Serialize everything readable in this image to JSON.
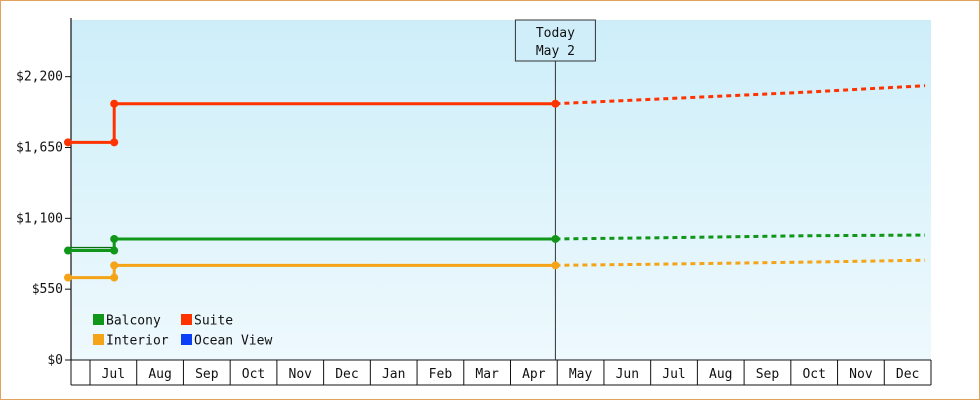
{
  "chart_data": {
    "type": "line",
    "y_ticks": [
      "$0",
      "$550",
      "$1,100",
      "$1,650",
      "$2,200"
    ],
    "ylim": [
      0,
      2640
    ],
    "x_months": [
      "Jul",
      "Aug",
      "Sep",
      "Oct",
      "Nov",
      "Dec",
      "Jan",
      "Feb",
      "Mar",
      "Apr",
      "May",
      "Jun",
      "Jul",
      "Aug",
      "Sep",
      "Oct",
      "Nov",
      "Dec"
    ],
    "today": {
      "line1": "Today",
      "line2": "May 2",
      "x": 10.55
    },
    "grid": false,
    "legend_position": "bottom-left",
    "series": [
      {
        "name": "Suite",
        "color": "#ff3300",
        "actual": [
          [
            0,
            1690
          ],
          [
            1,
            1690
          ],
          [
            1,
            1990
          ],
          [
            10.55,
            1990
          ]
        ],
        "markers": [
          [
            0,
            1690
          ],
          [
            1,
            1690
          ],
          [
            1,
            1990
          ],
          [
            10.55,
            1990
          ]
        ],
        "forecast": [
          [
            10.55,
            1990
          ],
          [
            13,
            2030
          ],
          [
            16,
            2080
          ],
          [
            18.55,
            2130
          ]
        ]
      },
      {
        "name": "Balcony",
        "color": "#109618",
        "actual": [
          [
            0,
            850
          ],
          [
            1,
            850
          ],
          [
            1,
            940
          ],
          [
            10.55,
            940
          ]
        ],
        "actual2": [
          [
            0,
            850
          ],
          [
            1,
            850
          ]
        ],
        "markers": [
          [
            0,
            850
          ],
          [
            1,
            850
          ],
          [
            1,
            940
          ],
          [
            10.55,
            940
          ]
        ],
        "forecast": [
          [
            10.55,
            940
          ],
          [
            13,
            950
          ],
          [
            16,
            965
          ],
          [
            18.55,
            970
          ]
        ]
      },
      {
        "name": "Interior",
        "color": "#f4a416",
        "actual": [
          [
            0,
            640
          ],
          [
            1,
            640
          ],
          [
            1,
            735
          ],
          [
            10.55,
            735
          ]
        ],
        "markers": [
          [
            0,
            640
          ],
          [
            1,
            640
          ],
          [
            1,
            735
          ],
          [
            10.55,
            735
          ]
        ],
        "forecast": [
          [
            10.55,
            735
          ],
          [
            13,
            745
          ],
          [
            16,
            760
          ],
          [
            18.55,
            775
          ]
        ]
      }
    ],
    "legend": [
      {
        "name": "Balcony",
        "color": "#109618"
      },
      {
        "name": "Suite",
        "color": "#ff3300"
      },
      {
        "name": "Interior",
        "color": "#f4a416"
      },
      {
        "name": "Ocean View",
        "color": "#0b3ff5"
      }
    ]
  }
}
